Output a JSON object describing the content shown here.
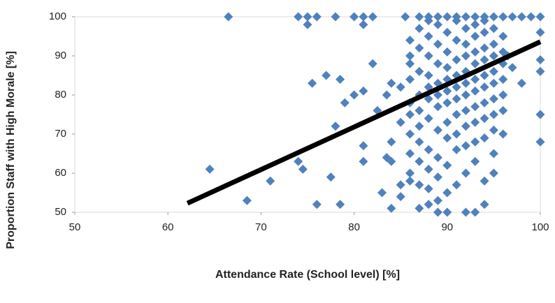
{
  "chart_data": {
    "type": "scatter",
    "x_label": "Attendance Rate (School level) [%]",
    "y_label": "Proportion Staff with High Morale [%]",
    "xlim": [
      50,
      100
    ],
    "xticks": [
      50,
      60,
      70,
      80,
      90,
      100
    ],
    "ylim": [
      50,
      100
    ],
    "yticks": [
      50,
      60,
      70,
      80,
      90,
      100
    ],
    "series": [
      {
        "color": "#4f81bd",
        "marker": "diamond",
        "x": [
          66.5,
          74,
          75,
          76,
          78,
          80,
          81,
          82,
          75,
          81,
          64.5,
          68.5,
          71,
          74,
          74.5,
          75.5,
          77,
          77.5,
          76,
          78.5,
          78.5,
          78,
          80,
          81,
          82,
          79,
          81,
          81,
          82.5,
          83,
          83.5,
          84,
          84,
          84,
          85,
          85,
          85,
          83.5,
          84,
          86,
          85.5,
          100,
          100,
          100,
          100,
          100,
          100,
          98,
          97,
          96.5,
          96,
          95,
          94,
          93,
          92,
          90,
          89,
          88,
          85,
          86,
          86,
          86,
          86,
          86,
          86,
          86,
          86,
          86,
          87,
          87,
          87,
          87,
          87,
          87,
          87,
          87,
          87,
          87,
          88,
          88,
          88,
          88,
          88,
          88,
          88,
          88,
          88,
          88,
          89,
          89,
          89,
          89,
          89,
          89,
          89,
          89,
          89,
          89,
          90,
          90,
          90,
          90,
          90,
          90,
          90,
          90,
          90,
          90,
          91,
          91,
          91,
          91,
          91,
          91,
          91,
          91,
          91,
          91,
          92,
          92,
          92,
          92,
          92,
          92,
          92,
          92,
          92,
          92,
          93,
          93,
          93,
          93,
          93,
          93,
          93,
          93,
          93,
          93,
          94,
          94,
          94,
          94,
          94,
          94,
          94,
          94,
          94,
          94,
          95,
          95,
          95,
          95,
          95,
          95,
          95,
          95,
          95,
          96,
          96,
          96,
          96,
          96,
          96,
          87,
          88,
          89,
          90,
          91,
          92,
          93,
          94,
          95,
          96,
          97,
          98,
          99
        ],
        "values": [
          100,
          100,
          100,
          100,
          100,
          100,
          100,
          100,
          98,
          98,
          61,
          53,
          58,
          63,
          61,
          83,
          85,
          59,
          52,
          52,
          84,
          72,
          80,
          81,
          88,
          78,
          63,
          67,
          76,
          55,
          64,
          51,
          63,
          68,
          73,
          82,
          57,
          80,
          83,
          94,
          100,
          100,
          96,
          89,
          86,
          75,
          68,
          83,
          87,
          90,
          70,
          60,
          52,
          50,
          50,
          50,
          50,
          52,
          54,
          88,
          84,
          78,
          75,
          70,
          65,
          60,
          58,
          90,
          92,
          86,
          80,
          76,
          72,
          68,
          63,
          57,
          51,
          97,
          95,
          90,
          85,
          82,
          79,
          74,
          66,
          61,
          56,
          99,
          98,
          93,
          88,
          83,
          80,
          77,
          71,
          64,
          59,
          53,
          96,
          91,
          87,
          84,
          81,
          78,
          73,
          69,
          62,
          55,
          99,
          94,
          89,
          85,
          82,
          79,
          75,
          70,
          66,
          57,
          97,
          93,
          90,
          86,
          83,
          80,
          76,
          72,
          67,
          60,
          98,
          95,
          91,
          88,
          84,
          81,
          77,
          73,
          68,
          63,
          99,
          96,
          92,
          89,
          85,
          82,
          78,
          74,
          69,
          58,
          97,
          93,
          90,
          86,
          83,
          79,
          75,
          71,
          65,
          95,
          91,
          88,
          84,
          80,
          76,
          100,
          100,
          100,
          100,
          100,
          100,
          100,
          100,
          100,
          100,
          100,
          100,
          100
        ]
      },
      {
        "color": "#000000",
        "marker": "line",
        "x": [
          62.1,
          100
        ],
        "values": [
          52.3,
          93.6
        ]
      }
    ]
  }
}
